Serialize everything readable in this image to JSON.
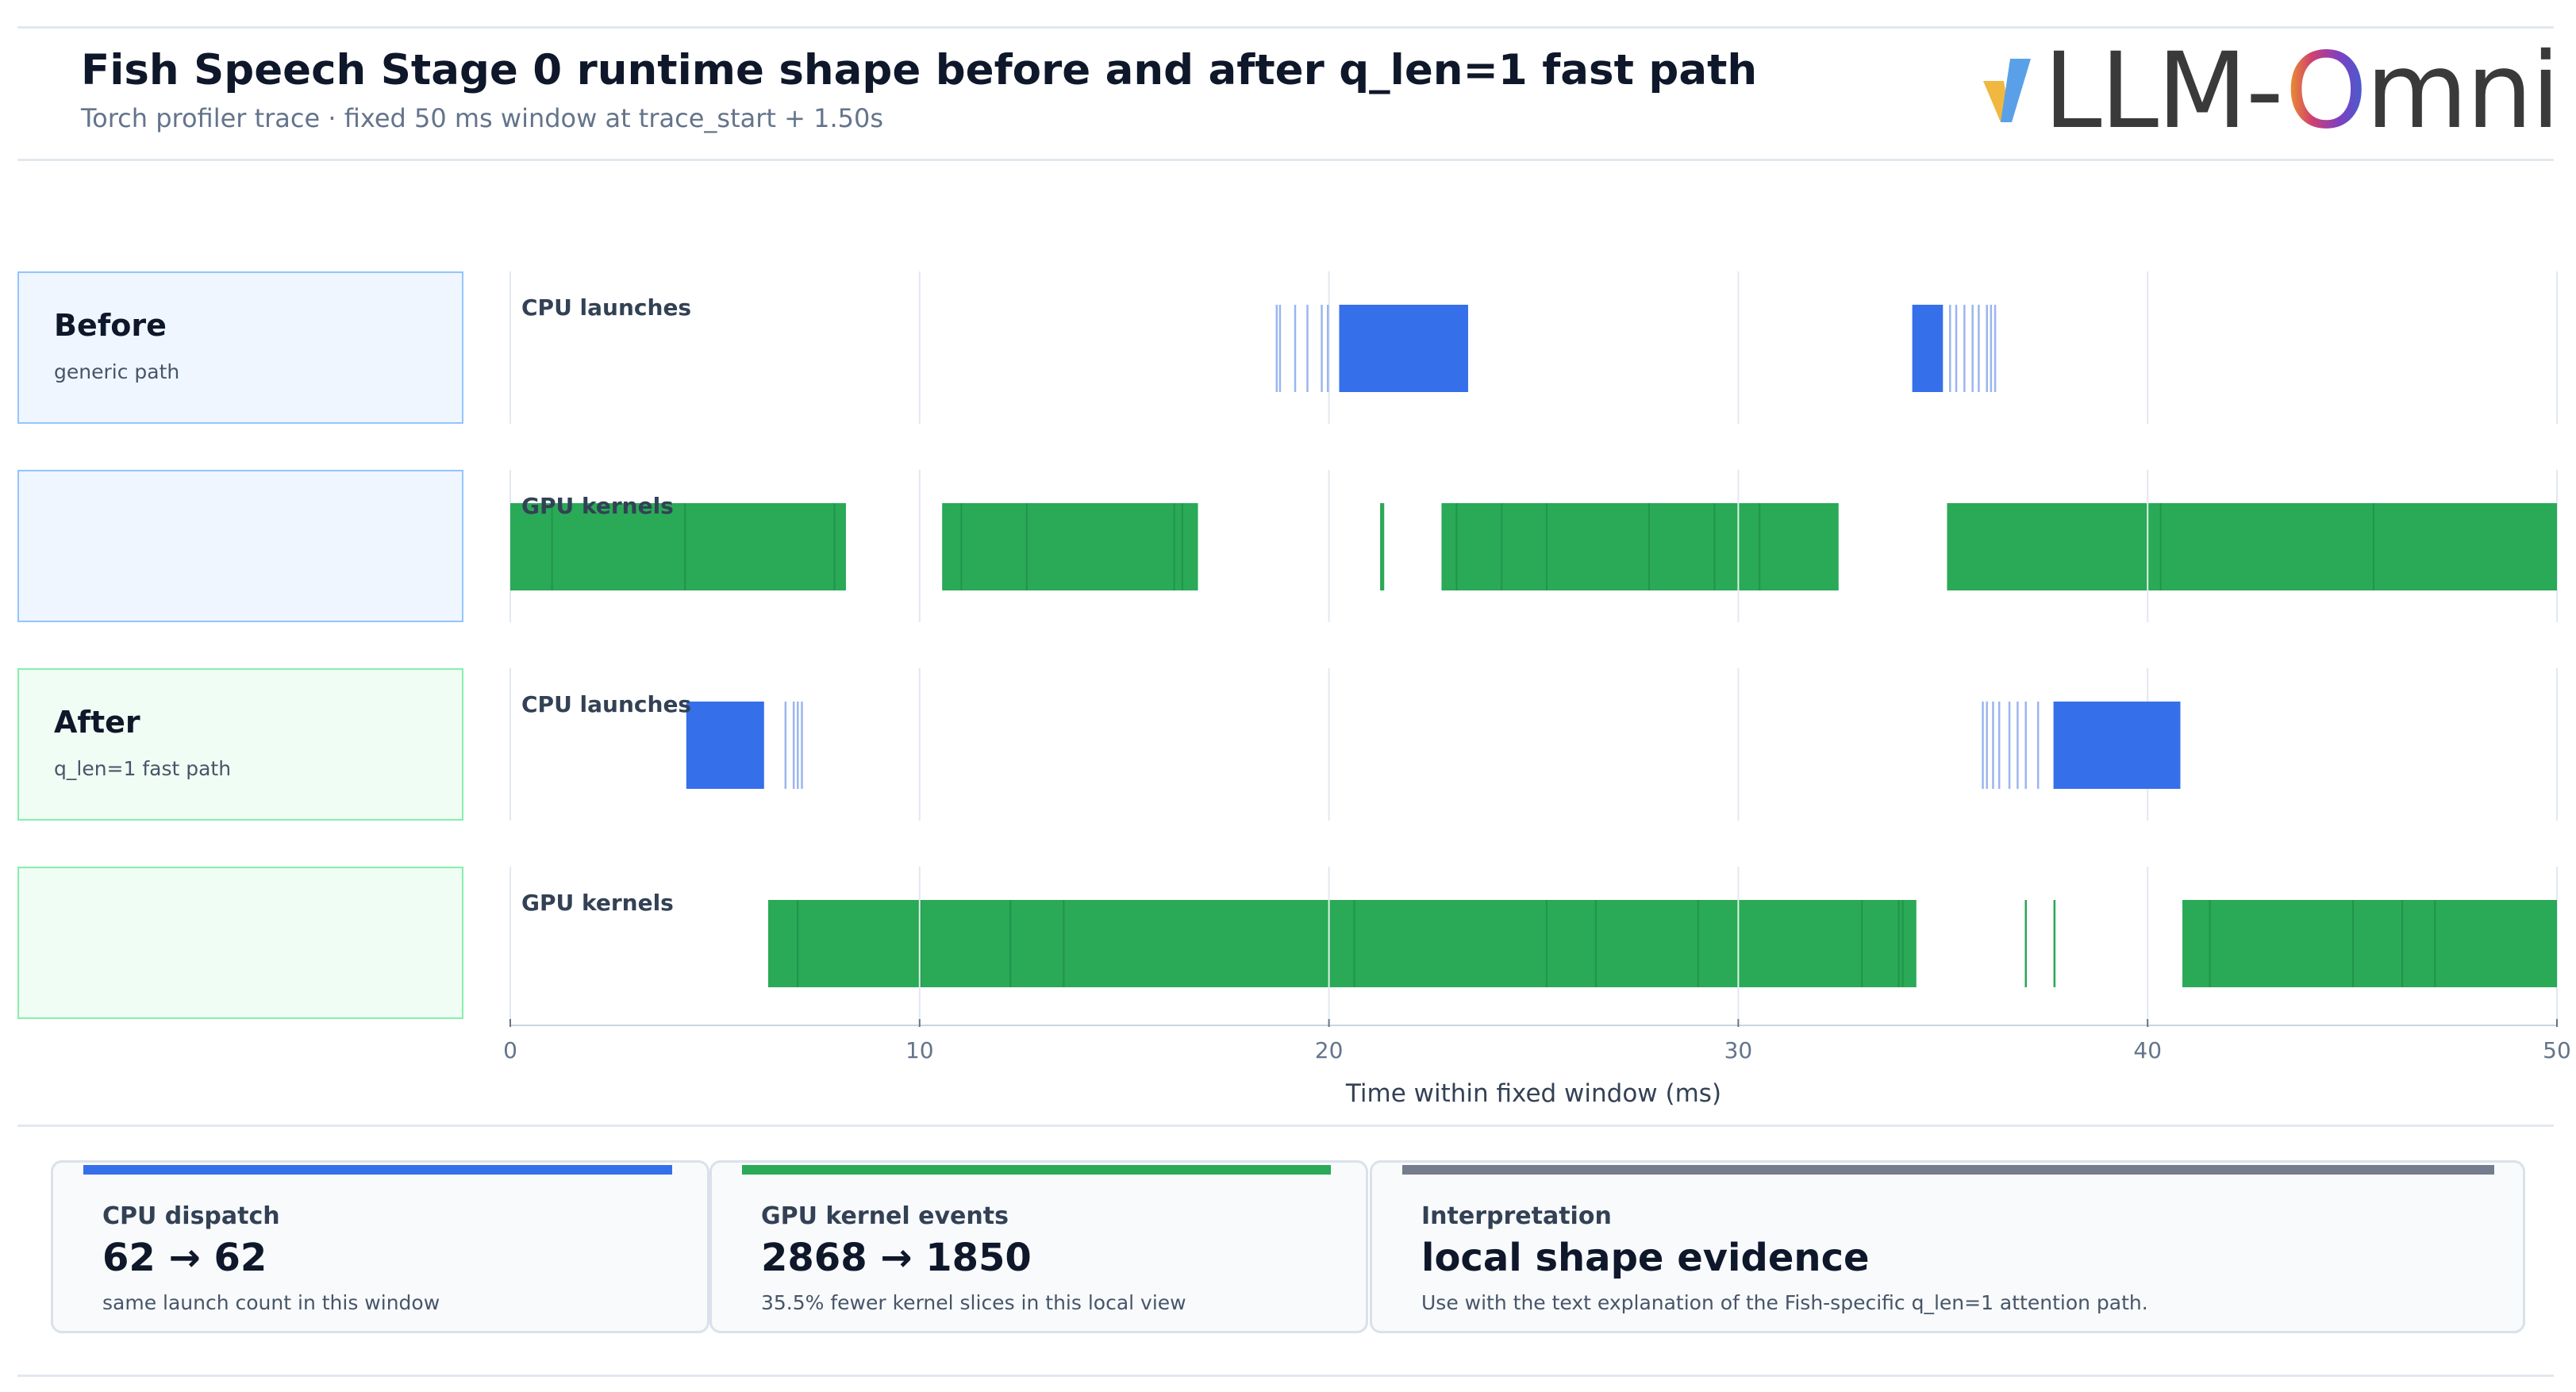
{
  "header": {
    "title": "Fish Speech Stage 0 runtime shape before and after q_len=1 fast path",
    "subtitle": "Torch profiler trace · fixed 50 ms window at trace_start + 1.50s",
    "logo_text": "vLLM-Omni"
  },
  "rows": [
    {
      "title": "Before",
      "subtitle": "generic path"
    },
    {
      "title": "",
      "subtitle": ""
    },
    {
      "title": "After",
      "subtitle": "q_len=1 fast path"
    },
    {
      "title": "",
      "subtitle": ""
    }
  ],
  "colors": {
    "cpu": "#356fea",
    "cpu_thin": "#9bb5f0",
    "gpu": "#2aa957",
    "gpu_dark": "#1f9048",
    "grid": "#e2e8f0",
    "card_interpretation": "#737d8c"
  },
  "chart_data": {
    "type": "timeline",
    "xlabel": "Time within fixed window (ms)",
    "xlim": [
      0,
      50
    ],
    "xticks": [
      0,
      10,
      20,
      30,
      40,
      50
    ],
    "tracks": [
      {
        "label": "CPU launches",
        "kind": "cpu",
        "group": "Before",
        "blocks": [
          [
            20.25,
            23.4
          ],
          [
            34.25,
            35.0
          ]
        ],
        "thin": [
          18.7,
          18.78,
          19.15,
          19.45,
          19.8,
          19.95,
          35.15,
          35.3,
          35.5,
          35.7,
          35.85,
          36.05,
          36.15,
          36.25
        ]
      },
      {
        "label": "GPU kernels",
        "kind": "gpu",
        "group": "Before",
        "blocks": [
          [
            0.0,
            8.2
          ],
          [
            10.55,
            16.8
          ],
          [
            21.25,
            21.35
          ],
          [
            22.75,
            32.45
          ],
          [
            35.1,
            50.0
          ]
        ],
        "thin": [
          1.0,
          4.25,
          7.9,
          11.0,
          12.6,
          16.2,
          16.4,
          23.1,
          24.2,
          25.3,
          27.8,
          29.4,
          30.5,
          40.3,
          45.5
        ]
      },
      {
        "label": "CPU launches",
        "kind": "cpu",
        "group": "After",
        "blocks": [
          [
            4.3,
            6.2
          ],
          [
            37.7,
            40.8
          ]
        ],
        "thin": [
          6.7,
          6.9,
          7.0,
          7.1,
          35.95,
          36.05,
          36.2,
          36.35,
          36.6,
          36.8,
          37.0,
          37.3
        ]
      },
      {
        "label": "GPU kernels",
        "kind": "gpu",
        "group": "After",
        "blocks": [
          [
            6.3,
            34.35
          ],
          [
            37.0,
            37.05
          ],
          [
            37.7,
            37.75
          ],
          [
            40.85,
            50.0
          ]
        ],
        "thin": [
          7.0,
          10.0,
          12.2,
          13.5,
          20.6,
          25.3,
          26.5,
          29.0,
          33.0,
          33.9,
          34.0,
          41.5,
          45.0,
          46.2,
          47.0
        ]
      }
    ]
  },
  "cards": [
    {
      "key": "CPU dispatch",
      "value": "62 → 62",
      "note": "same launch count in this window",
      "color": "#356fea"
    },
    {
      "key": "GPU kernel events",
      "value": "2868 → 1850",
      "note": "35.5% fewer kernel slices in this local view",
      "color": "#2aa957"
    },
    {
      "key": "Interpretation",
      "value": "local shape evidence",
      "note": "Use with the text explanation of the Fish-specific q_len=1 attention path.",
      "color": "#737d8c"
    }
  ]
}
